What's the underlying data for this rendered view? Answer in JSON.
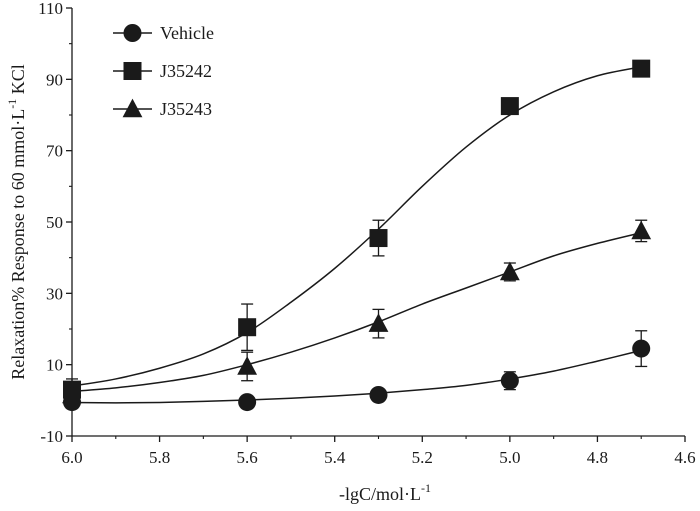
{
  "chart_data": {
    "type": "line",
    "x_reversed": true,
    "xlim": [
      6.0,
      4.6
    ],
    "ylim": [
      -10,
      110
    ],
    "xticks": [
      "6.0",
      "5.8",
      "5.6",
      "5.4",
      "5.2",
      "5.0",
      "4.8",
      "4.6"
    ],
    "yticks": [
      "-10",
      "10",
      "30",
      "50",
      "70",
      "90",
      "110"
    ],
    "xlabel": "-lgC/mol·L",
    "xlabel_sup": "-1",
    "ylabel": "Relaxation% Response to 60 mmol·L",
    "ylabel_sup": "-1",
    "ylabel_tail": " KCl",
    "grid": false,
    "legend_position": "top-left",
    "series": [
      {
        "name": "Vehicle",
        "marker": "circle",
        "x": [
          6.0,
          5.6,
          5.3,
          5.0,
          4.7
        ],
        "y": [
          -0.5,
          -0.5,
          1.5,
          5.5,
          14.5
        ],
        "yerr": [
          1.5,
          1.5,
          1.5,
          2.5,
          5.0
        ],
        "fit_x": [
          6.0,
          5.9,
          5.8,
          5.7,
          5.6,
          5.5,
          5.4,
          5.3,
          5.2,
          5.1,
          5.0,
          4.9,
          4.8,
          4.7
        ],
        "fit_y": [
          -0.6,
          -0.7,
          -0.6,
          -0.3,
          0.1,
          0.6,
          1.2,
          2.0,
          3.0,
          4.2,
          6.0,
          8.2,
          11.0,
          14.0
        ]
      },
      {
        "name": "J35242",
        "marker": "square",
        "x": [
          6.0,
          5.6,
          5.3,
          5.0,
          4.7
        ],
        "y": [
          3.0,
          20.5,
          45.5,
          82.5,
          93.0
        ],
        "yerr": [
          3.0,
          6.5,
          5.0,
          1.0,
          1.0
        ],
        "fit_x": [
          6.0,
          5.9,
          5.8,
          5.7,
          5.6,
          5.5,
          5.4,
          5.3,
          5.2,
          5.1,
          5.0,
          4.9,
          4.8,
          4.7
        ],
        "fit_y": [
          4.0,
          6.0,
          9.0,
          13.0,
          19.0,
          27.5,
          37.0,
          48.0,
          60.0,
          71.0,
          80.0,
          86.5,
          91.0,
          93.5
        ]
      },
      {
        "name": "J35243",
        "marker": "triangle",
        "x": [
          6.0,
          5.6,
          5.3,
          5.0,
          4.7
        ],
        "y": [
          1.5,
          9.5,
          21.5,
          36.0,
          47.5
        ],
        "yerr": [
          2.0,
          4.0,
          4.0,
          2.5,
          3.0
        ],
        "fit_x": [
          6.0,
          5.9,
          5.8,
          5.7,
          5.6,
          5.5,
          5.4,
          5.3,
          5.2,
          5.1,
          5.0,
          4.9,
          4.8,
          4.7
        ],
        "fit_y": [
          2.5,
          3.5,
          5.0,
          7.0,
          10.0,
          13.5,
          17.5,
          22.0,
          27.0,
          31.5,
          36.0,
          40.5,
          44.0,
          47.0
        ]
      }
    ]
  }
}
